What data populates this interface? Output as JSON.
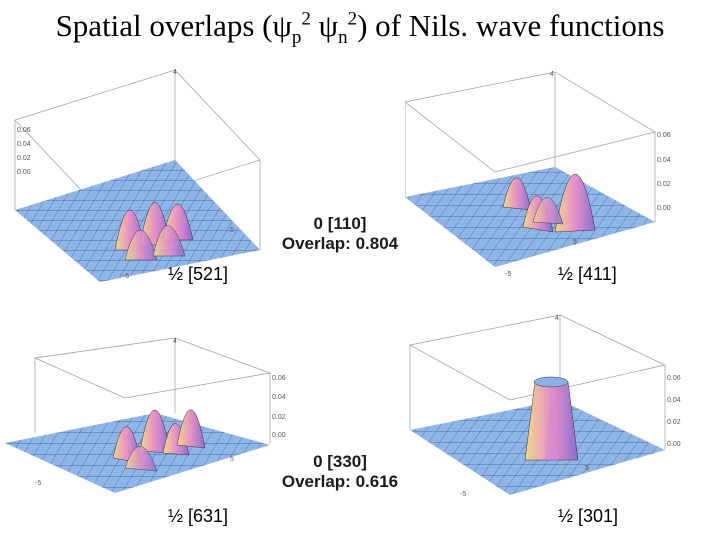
{
  "title": {
    "prefix": "Spatial overlaps (",
    "psi1": "ψ",
    "sub1": "p",
    "sup1": "2",
    "psi2": " ψ",
    "sub2": "n",
    "sup2": "2",
    "suffix": ") of Nils. wave functions"
  },
  "pairs": [
    {
      "label": "0 [110]",
      "overlap": "Overlap: 0.804"
    },
    {
      "label": "0 [330]",
      "overlap": "Overlap: 0.616"
    }
  ],
  "plots": [
    {
      "state": "½ [521]",
      "zticks": [
        "0.06",
        "0.04",
        "0.02",
        "0.00"
      ]
    },
    {
      "state": "½ [411]",
      "zticks": [
        "0.06",
        "0.04",
        "0.02",
        "0.00"
      ]
    },
    {
      "state": "½ [631]",
      "zticks": [
        "0.06",
        "0.04",
        "0.02",
        "0.00"
      ]
    },
    {
      "state": "½ [301]",
      "zticks": [
        "0.06",
        "0.04",
        "0.02",
        "0.00"
      ]
    }
  ],
  "axis_ticks": {
    "top": "4",
    "mid": "5",
    "low": "-5"
  },
  "colors": {
    "surface": "#8fb6e6",
    "grid": "#2a4f8a",
    "peak_pink": "#e58fc7",
    "peak_gold": "#e8d89a"
  }
}
